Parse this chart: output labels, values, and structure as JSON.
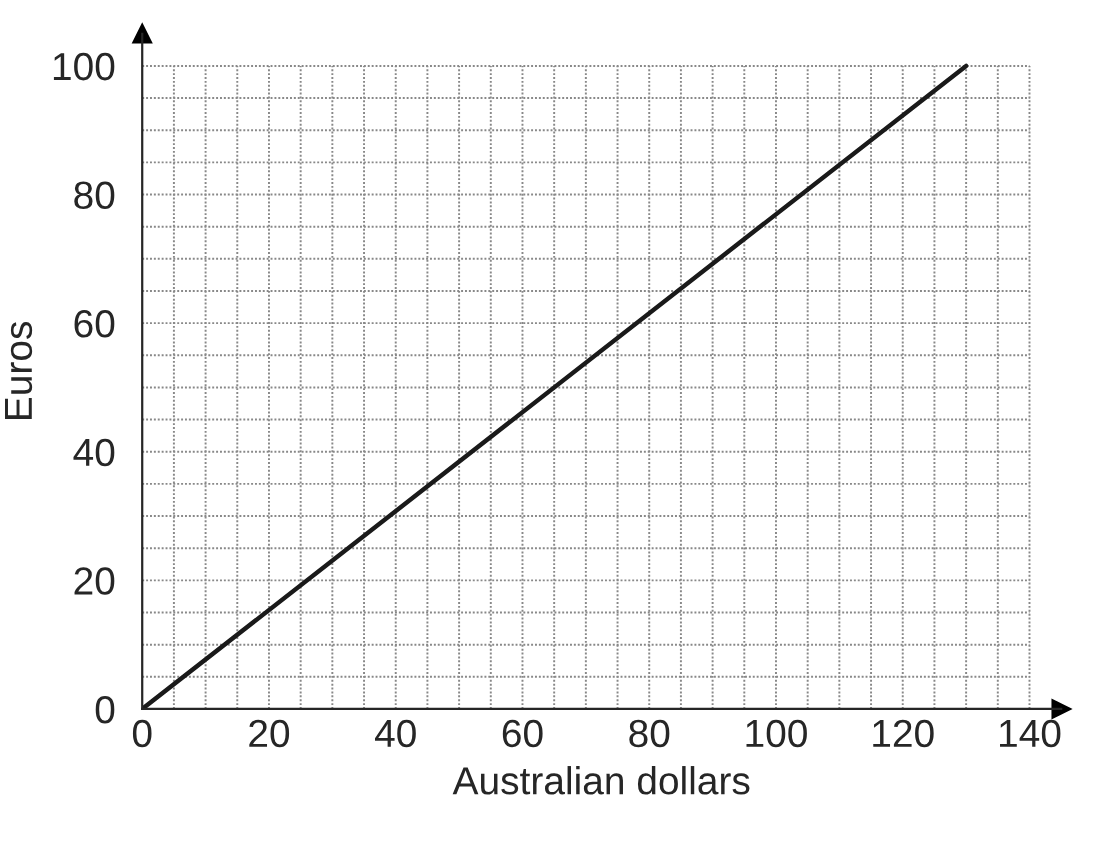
{
  "chart_data": {
    "type": "line",
    "xlabel": "Australian dollars",
    "ylabel": "Euros",
    "x": [
      0,
      130
    ],
    "series": [
      {
        "color": "#1a1a1a",
        "values": [
          0,
          100
        ]
      }
    ],
    "xlim": [
      0,
      145
    ],
    "ylim": [
      0,
      105
    ],
    "xticks": [
      0,
      20,
      40,
      60,
      80,
      100,
      120,
      140
    ],
    "yticks": [
      0,
      20,
      40,
      60,
      80,
      100
    ],
    "grid": true,
    "line_style": "solid",
    "marker": "none"
  }
}
